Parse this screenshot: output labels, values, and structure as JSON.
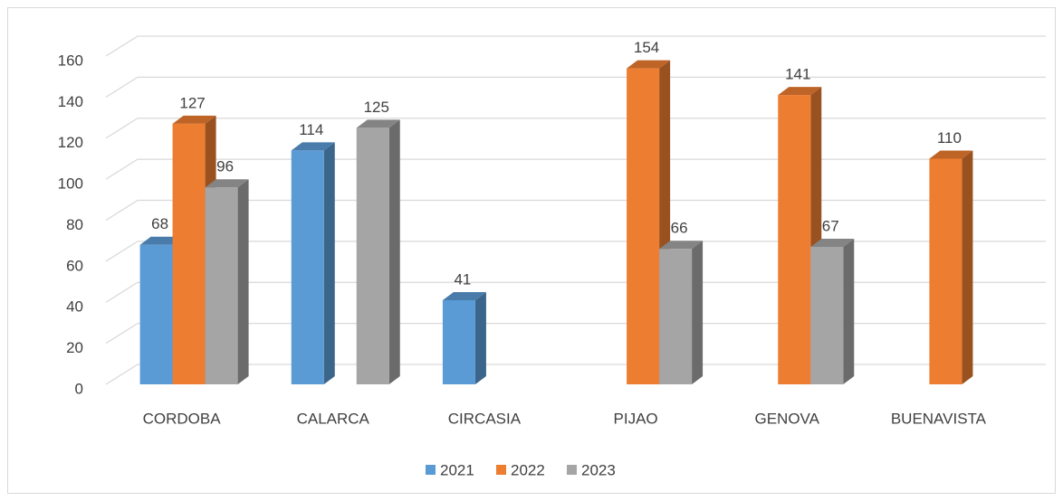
{
  "chart_data": {
    "type": "bar3d",
    "categories": [
      "CORDOBA",
      "CALARCA",
      "CIRCASIA",
      "PIJAO",
      "GENOVA",
      "BUENAVISTA"
    ],
    "series": [
      {
        "name": "2021",
        "color": "#5b9bd5",
        "values": [
          68,
          114,
          41,
          null,
          null,
          null
        ]
      },
      {
        "name": "2022",
        "color": "#ed7d31",
        "values": [
          127,
          null,
          null,
          154,
          141,
          110
        ]
      },
      {
        "name": "2023",
        "color": "#a5a5a5",
        "values": [
          96,
          125,
          null,
          66,
          67,
          null
        ]
      }
    ],
    "ylim": [
      0,
      160
    ],
    "yticks": [
      0,
      20,
      40,
      60,
      80,
      100,
      120,
      140,
      160
    ],
    "grid": true,
    "legend": "bottom"
  }
}
